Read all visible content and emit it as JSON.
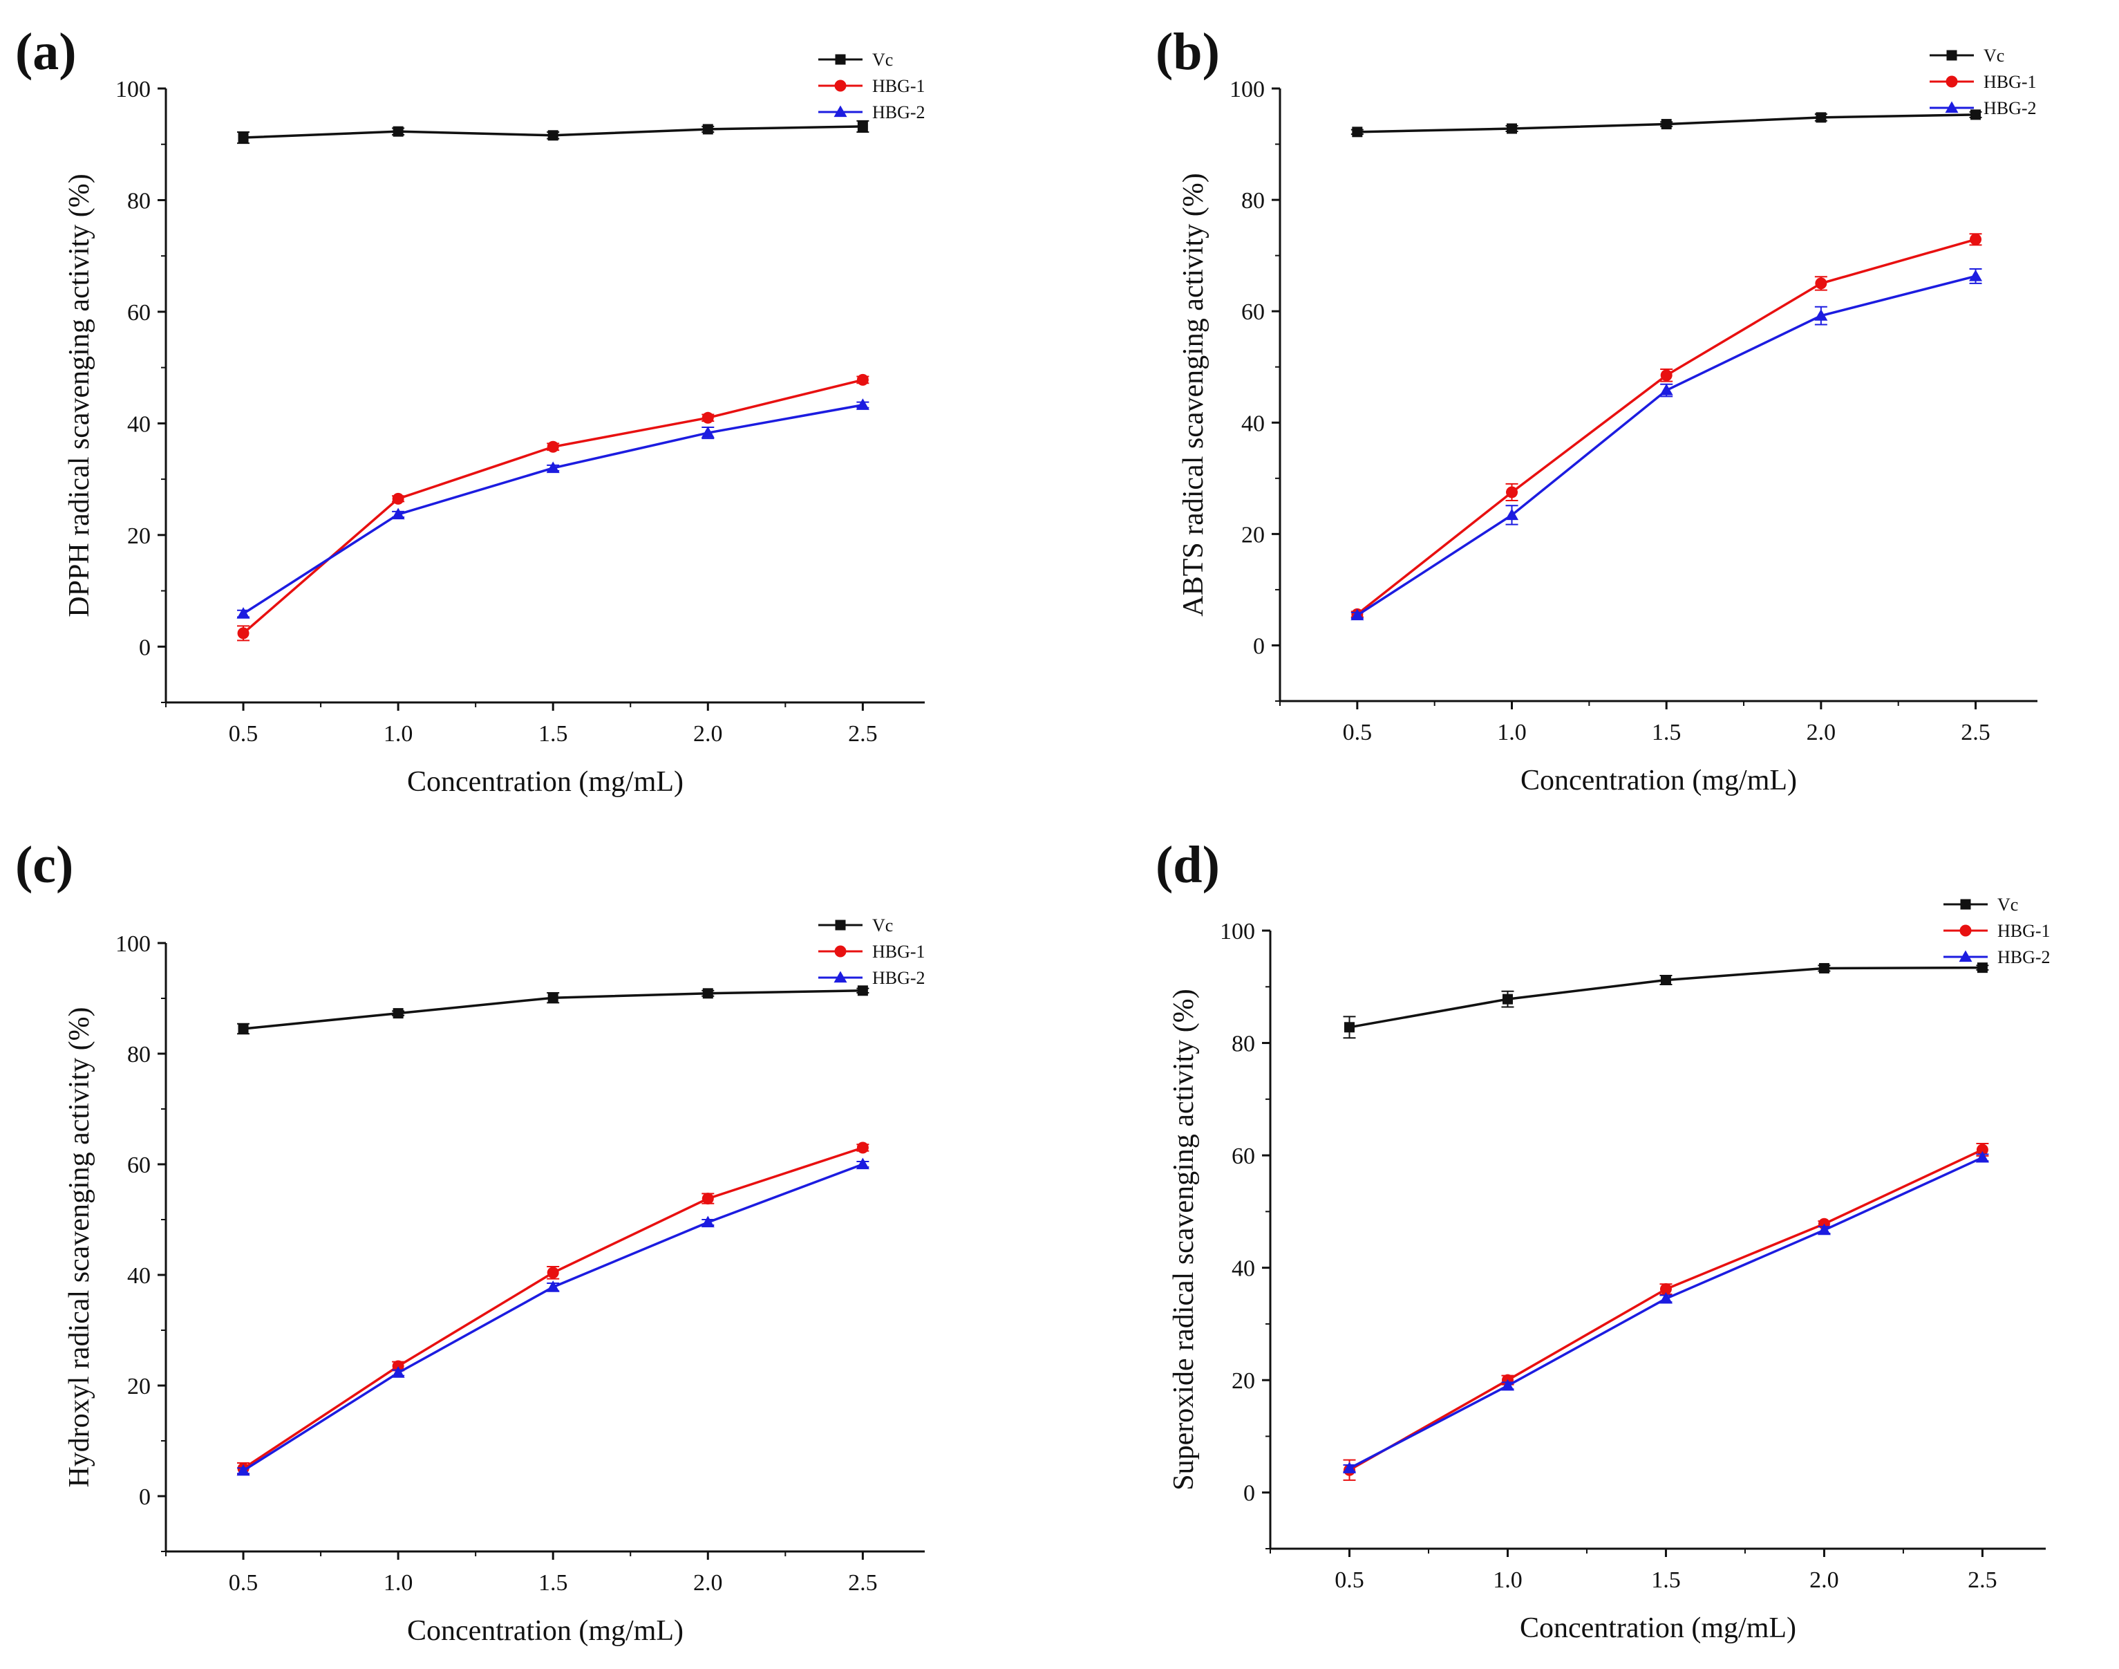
{
  "colors": {
    "Vc": "#111111",
    "HBG-1": "#e81010",
    "HBG-2": "#1c1ce0"
  },
  "chart_data": [
    {
      "type": "line",
      "panel": "(a)",
      "xlabel": "Concentration (mg/mL)",
      "ylabel": "DPPH radical scavenging activity (%)",
      "x": [
        0.5,
        1.0,
        1.5,
        2.0,
        2.5
      ],
      "xticks": [
        "0.5",
        "1.0",
        "1.5",
        "2.0",
        "2.5"
      ],
      "xlim": [
        0.25,
        2.7
      ],
      "yticks": [
        "0",
        "20",
        "40",
        "60",
        "80",
        "100"
      ],
      "ylim": [
        -10,
        100
      ],
      "legend_position": "top-right",
      "series": [
        {
          "name": "Vc",
          "marker": "square",
          "values": [
            91.2,
            92.3,
            91.6,
            92.7,
            93.2
          ],
          "errors": [
            1.0,
            0.6,
            0.6,
            0.5,
            1.0
          ]
        },
        {
          "name": "HBG-1",
          "marker": "circle",
          "values": [
            2.4,
            26.5,
            35.8,
            41.0,
            47.8
          ],
          "errors": [
            1.3,
            0.5,
            0.6,
            0.6,
            0.6
          ]
        },
        {
          "name": "HBG-2",
          "marker": "triangle",
          "values": [
            5.9,
            23.7,
            32.0,
            38.3,
            43.3
          ],
          "errors": [
            0.6,
            0.5,
            0.5,
            1.0,
            0.5
          ]
        }
      ]
    },
    {
      "type": "line",
      "panel": "(b)",
      "xlabel": "Concentration (mg/mL)",
      "ylabel": "ABTS radical scavenging activity (%)",
      "x": [
        0.5,
        1.0,
        1.5,
        2.0,
        2.5
      ],
      "xticks": [
        "0.5",
        "1.0",
        "1.5",
        "2.0",
        "2.5"
      ],
      "xlim": [
        0.25,
        2.7
      ],
      "yticks": [
        "0",
        "20",
        "40",
        "60",
        "80",
        "100"
      ],
      "ylim": [
        -10,
        100
      ],
      "legend_position": "top-right",
      "series": [
        {
          "name": "Vc",
          "marker": "square",
          "values": [
            92.2,
            92.8,
            93.6,
            94.8,
            95.3
          ],
          "errors": [
            0.4,
            0.5,
            0.4,
            0.6,
            0.5
          ]
        },
        {
          "name": "HBG-1",
          "marker": "circle",
          "values": [
            5.6,
            27.5,
            48.5,
            65.0,
            72.9
          ],
          "errors": [
            0.5,
            1.5,
            1.1,
            1.2,
            1.0
          ]
        },
        {
          "name": "HBG-2",
          "marker": "triangle",
          "values": [
            5.4,
            23.4,
            45.8,
            59.2,
            66.3
          ],
          "errors": [
            0.5,
            1.7,
            1.1,
            1.6,
            1.3
          ]
        }
      ]
    },
    {
      "type": "line",
      "panel": "(c)",
      "xlabel": "Concentration (mg/mL)",
      "ylabel": "Hydroxyl radical scavenging activity (%)",
      "x": [
        0.5,
        1.0,
        1.5,
        2.0,
        2.5
      ],
      "xticks": [
        "0.5",
        "1.0",
        "1.5",
        "2.0",
        "2.5"
      ],
      "xlim": [
        0.25,
        2.7
      ],
      "yticks": [
        "0",
        "20",
        "40",
        "60",
        "80",
        "100"
      ],
      "ylim": [
        -10,
        100
      ],
      "legend_position": "top-right",
      "series": [
        {
          "name": "Vc",
          "marker": "square",
          "values": [
            84.5,
            87.3,
            90.1,
            90.9,
            91.4
          ],
          "errors": [
            0.9,
            0.4,
            0.9,
            0.5,
            0.4
          ]
        },
        {
          "name": "HBG-1",
          "marker": "circle",
          "values": [
            5.0,
            23.5,
            40.4,
            53.8,
            63.0
          ],
          "errors": [
            1.0,
            0.8,
            1.1,
            0.9,
            0.6
          ]
        },
        {
          "name": "HBG-2",
          "marker": "triangle",
          "values": [
            4.6,
            22.3,
            37.8,
            49.5,
            60.0
          ],
          "errors": [
            0.5,
            0.5,
            0.7,
            0.5,
            0.5
          ]
        }
      ]
    },
    {
      "type": "line",
      "panel": "(d)",
      "xlabel": "Concentration (mg/mL)",
      "ylabel": "Superoxide radical scavenging activity (%)",
      "x": [
        0.5,
        1.0,
        1.5,
        2.0,
        2.5
      ],
      "xticks": [
        "0.5",
        "1.0",
        "1.5",
        "2.0",
        "2.5"
      ],
      "xlim": [
        0.25,
        2.7
      ],
      "yticks": [
        "0",
        "20",
        "40",
        "60",
        "80",
        "100"
      ],
      "ylim": [
        -10,
        100
      ],
      "legend_position": "top-right",
      "series": [
        {
          "name": "Vc",
          "marker": "square",
          "values": [
            82.8,
            87.8,
            91.2,
            93.3,
            93.4
          ],
          "errors": [
            1.9,
            1.4,
            0.8,
            0.5,
            0.4
          ]
        },
        {
          "name": "HBG-1",
          "marker": "circle",
          "values": [
            4.0,
            20.0,
            36.2,
            47.8,
            61.0
          ],
          "errors": [
            1.8,
            0.8,
            0.9,
            0.5,
            1.1
          ]
        },
        {
          "name": "HBG-2",
          "marker": "triangle",
          "values": [
            4.3,
            19.0,
            34.5,
            46.7,
            59.6
          ],
          "errors": [
            0.6,
            0.6,
            0.6,
            0.6,
            0.6
          ]
        }
      ]
    }
  ]
}
